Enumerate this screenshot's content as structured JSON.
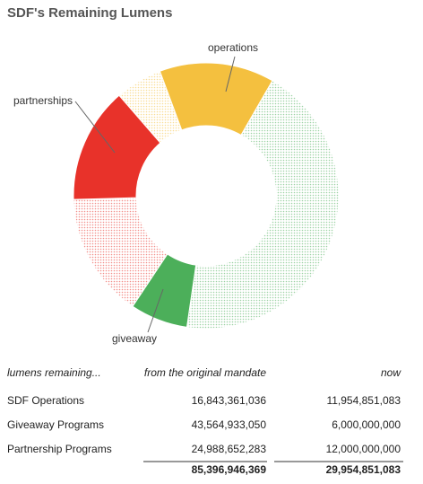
{
  "title": "SDF's Remaining Lumens",
  "chart_data": {
    "type": "donut",
    "categories": [
      "operations",
      "giveaway",
      "partnerships"
    ],
    "colors": [
      "#f4c03f",
      "#4caf5a",
      "#e8322a"
    ],
    "series": [
      {
        "name": "from the original mandate",
        "values": [
          16843361036,
          43564933050,
          24988652283
        ],
        "value_labels": [
          "16,843,361,036",
          "43,564,933,050",
          "24,988,652,283"
        ]
      },
      {
        "name": "now",
        "values": [
          11954851083,
          6000000000,
          12000000000
        ],
        "value_labels": [
          "11,954,851,083",
          "6,000,000,000",
          "12,000,000,000"
        ]
      }
    ]
  },
  "table": {
    "corner": "lumens remaining...",
    "row_labels": [
      "SDF Operations",
      "Giveaway Programs",
      "Partnership Programs"
    ],
    "totals": [
      "85,396,946,369",
      "29,954,851,083"
    ]
  }
}
